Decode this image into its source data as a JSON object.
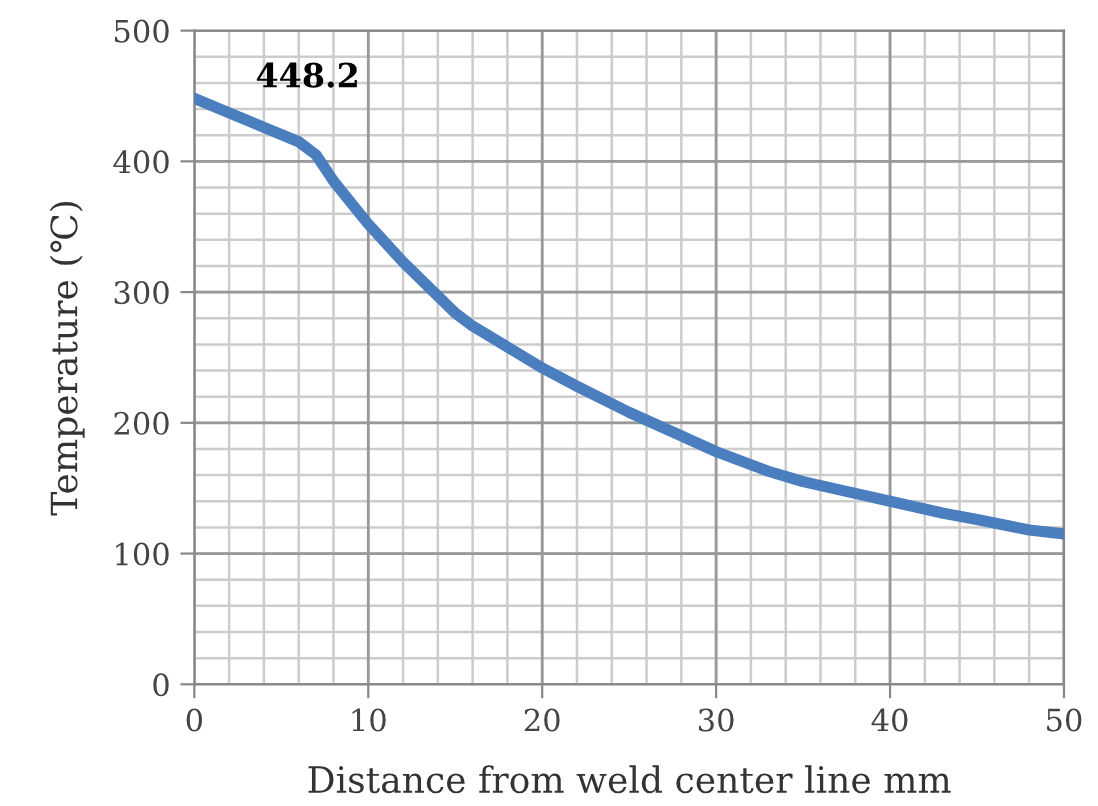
{
  "chart_data": {
    "type": "line",
    "xlabel": "Distance from weld center line mm",
    "ylabel": "Temperature (℃)",
    "x": [
      0,
      2,
      4,
      6,
      7,
      8,
      10,
      12,
      14,
      15,
      16,
      18,
      20,
      22,
      25,
      28,
      30,
      33,
      35,
      38,
      40,
      43,
      45,
      48,
      50
    ],
    "series": [
      {
        "color": "#4a7ebf",
        "values": [
          448.2,
          437,
          426,
          415,
          405,
          385,
          352,
          323,
          297,
          284,
          274,
          258,
          242,
          228,
          208,
          190,
          178,
          163,
          155,
          146,
          140,
          131,
          126,
          118,
          115
        ]
      }
    ],
    "annotations": [
      {
        "text": "448.2",
        "x": 0,
        "y": 448.2
      }
    ],
    "xlim": [
      0,
      50
    ],
    "ylim": [
      0,
      500
    ],
    "xticks": [
      0,
      10,
      20,
      30,
      40,
      50
    ],
    "yticks": [
      0,
      100,
      200,
      300,
      400,
      500
    ],
    "grid": true,
    "legend": false,
    "marker": "none",
    "line_style": "solid"
  }
}
